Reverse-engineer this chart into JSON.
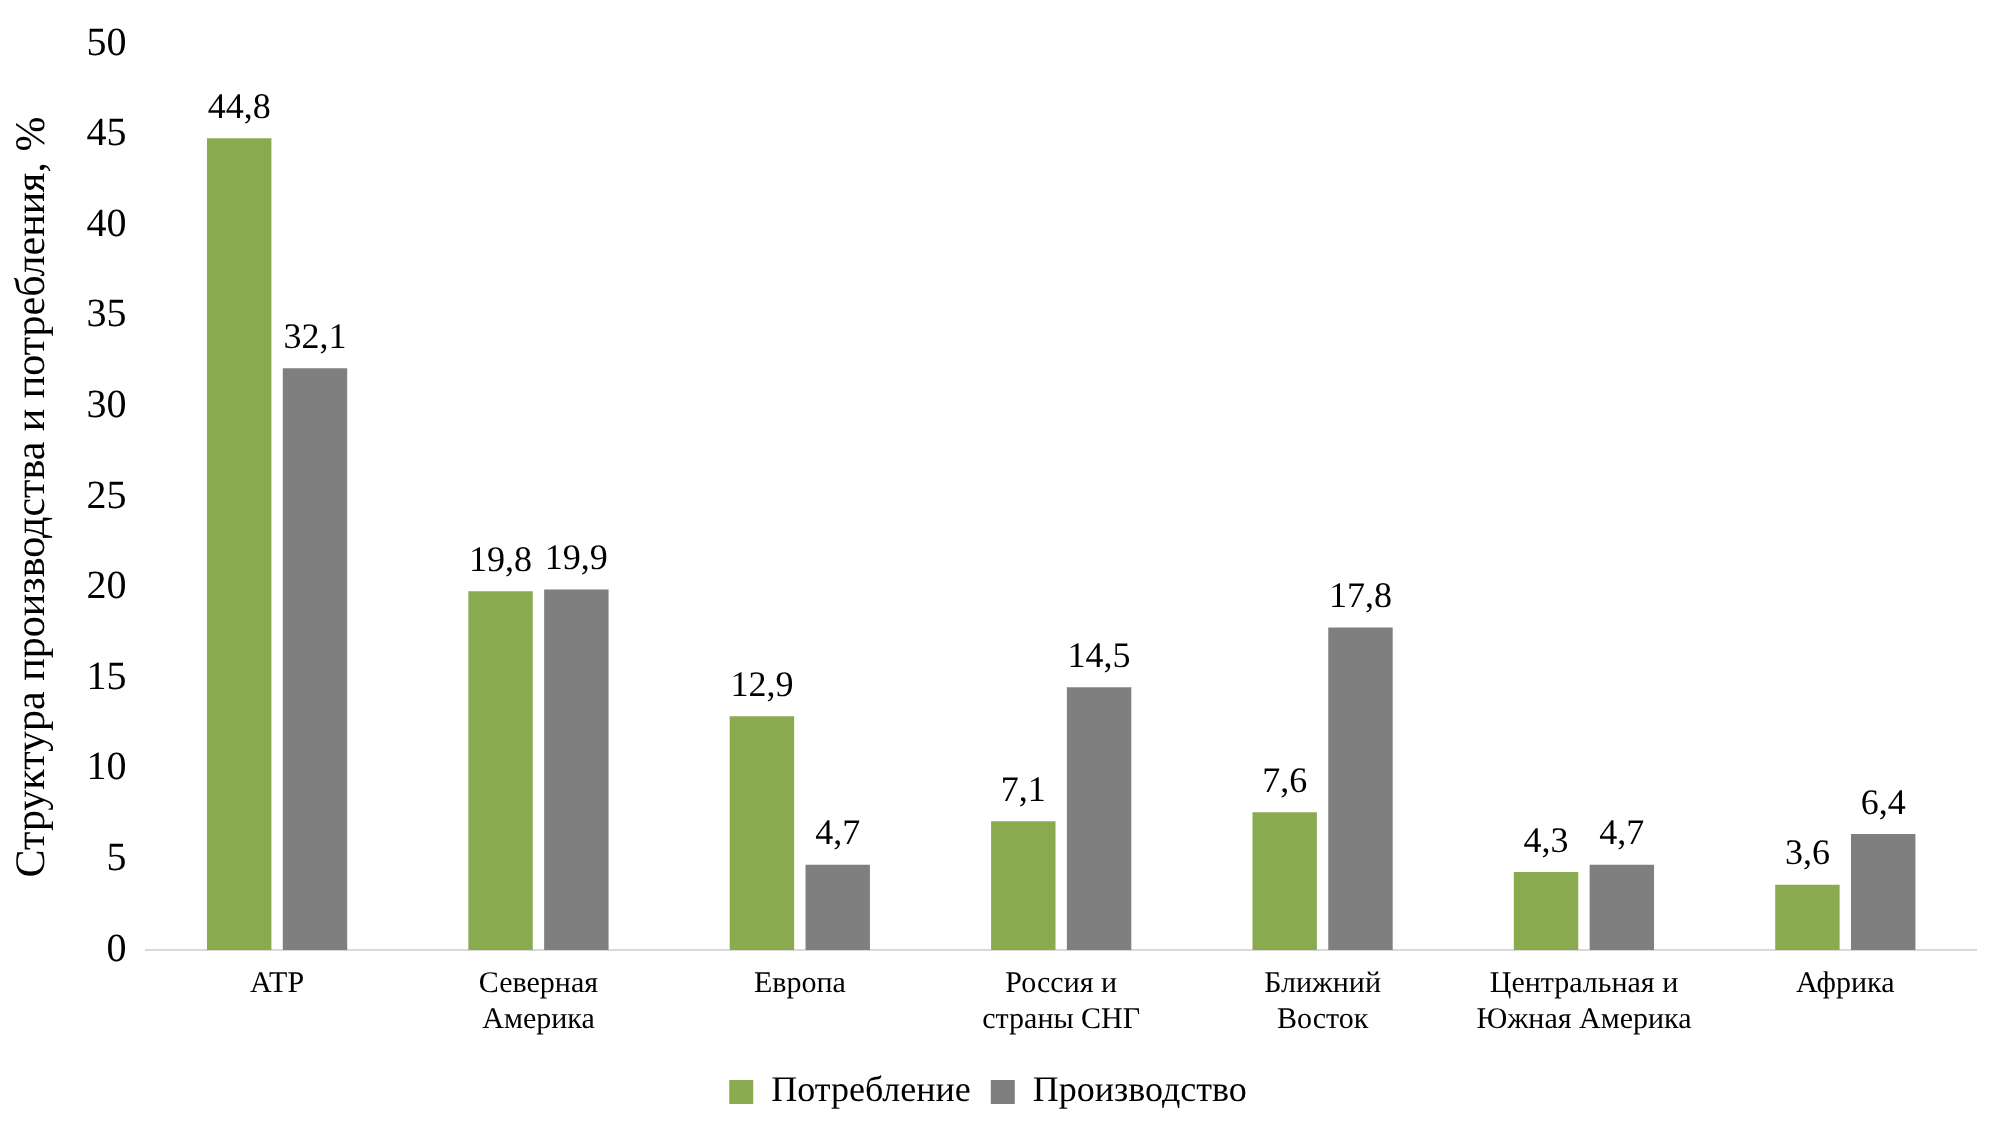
{
  "chart_data": {
    "type": "bar",
    "ylabel": "Структура производства и потребления, %",
    "categories": [
      "АТР",
      "Северная Америка",
      "Европа",
      "Россия и страны СНГ",
      "Ближний Восток",
      "Центральная и Южная Америка",
      "Африка"
    ],
    "series": [
      {
        "name": "Потребление",
        "color": "#8aaa4f",
        "values": [
          44.8,
          19.8,
          12.9,
          7.1,
          7.6,
          4.3,
          3.6
        ],
        "value_labels": [
          "44,8",
          "19,8",
          "12,9",
          "7,1",
          "7,6",
          "4,3",
          "3,6"
        ]
      },
      {
        "name": "Производство",
        "color": "#7f7f7f",
        "values": [
          32.1,
          19.9,
          4.7,
          14.5,
          17.8,
          4.7,
          6.4
        ],
        "value_labels": [
          "32,1",
          "19,9",
          "4,7",
          "14,5",
          "17,8",
          "4,7",
          "6,4"
        ]
      }
    ],
    "ylim": [
      0,
      50
    ],
    "yticks": [
      0,
      5,
      10,
      15,
      20,
      25,
      30,
      35,
      40,
      45,
      50
    ],
    "grid": false,
    "legend": "bottom"
  }
}
